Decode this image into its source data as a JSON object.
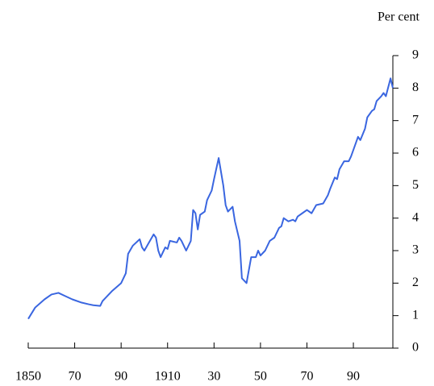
{
  "chart_data": {
    "type": "line",
    "y_label": "Per cent",
    "color": "#3a66e0",
    "x": [
      1850,
      1853,
      1857,
      1860,
      1863,
      1866,
      1869,
      1873,
      1876,
      1878,
      1881,
      1882,
      1886,
      1890,
      1892,
      1893,
      1895,
      1898,
      1899,
      1900,
      1902,
      1904,
      1905,
      1906,
      1907,
      1909,
      1910,
      1911,
      1914,
      1915,
      1916,
      1918,
      1920,
      1921,
      1922,
      1923,
      1924,
      1926,
      1927,
      1929,
      1930,
      1932,
      1934,
      1935,
      1936,
      1938,
      1939,
      1941,
      1942,
      1944,
      1946,
      1948,
      1949,
      1950,
      1952,
      1954,
      1956,
      1958,
      1959,
      1960,
      1962,
      1964,
      1965,
      1966,
      1968,
      1970,
      1972,
      1974,
      1977,
      1979,
      1980,
      1982,
      1983,
      1984,
      1986,
      1988,
      1989,
      1991,
      1992,
      1993,
      1995,
      1996,
      1998,
      1999,
      2000,
      2002,
      2003,
      2004,
      2006,
      2007
    ],
    "values": [
      0.9,
      1.25,
      1.5,
      1.65,
      1.7,
      1.6,
      1.5,
      1.4,
      1.35,
      1.32,
      1.3,
      1.45,
      1.75,
      2.0,
      2.3,
      2.9,
      3.15,
      3.35,
      3.1,
      3.0,
      3.25,
      3.5,
      3.4,
      3.0,
      2.8,
      3.1,
      3.05,
      3.3,
      3.25,
      3.4,
      3.3,
      3.0,
      3.3,
      4.25,
      4.15,
      3.65,
      4.1,
      4.2,
      4.55,
      4.85,
      5.2,
      5.85,
      5.0,
      4.4,
      4.2,
      4.35,
      3.9,
      3.3,
      2.15,
      2.0,
      2.8,
      2.8,
      3.0,
      2.85,
      3.0,
      3.3,
      3.4,
      3.7,
      3.75,
      4.0,
      3.9,
      3.95,
      3.9,
      4.05,
      4.15,
      4.25,
      4.15,
      4.4,
      4.45,
      4.7,
      4.9,
      5.25,
      5.2,
      5.5,
      5.75,
      5.75,
      5.9,
      6.3,
      6.5,
      6.4,
      6.75,
      7.1,
      7.3,
      7.35,
      7.6,
      7.75,
      7.85,
      7.75,
      8.3,
      8.0
    ],
    "xlim": [
      1850,
      2007
    ],
    "xticks": [
      1850,
      {
        "value": 1870,
        "label": "70"
      },
      {
        "value": 1890,
        "label": "90"
      },
      1910,
      {
        "value": 1930,
        "label": "30"
      },
      {
        "value": 1950,
        "label": "50"
      },
      {
        "value": 1970,
        "label": "70"
      },
      {
        "value": 1990,
        "label": "90"
      }
    ],
    "ylim": [
      0,
      9
    ],
    "yticks": [
      0,
      1,
      2,
      3,
      4,
      5,
      6,
      7,
      8,
      9
    ]
  }
}
